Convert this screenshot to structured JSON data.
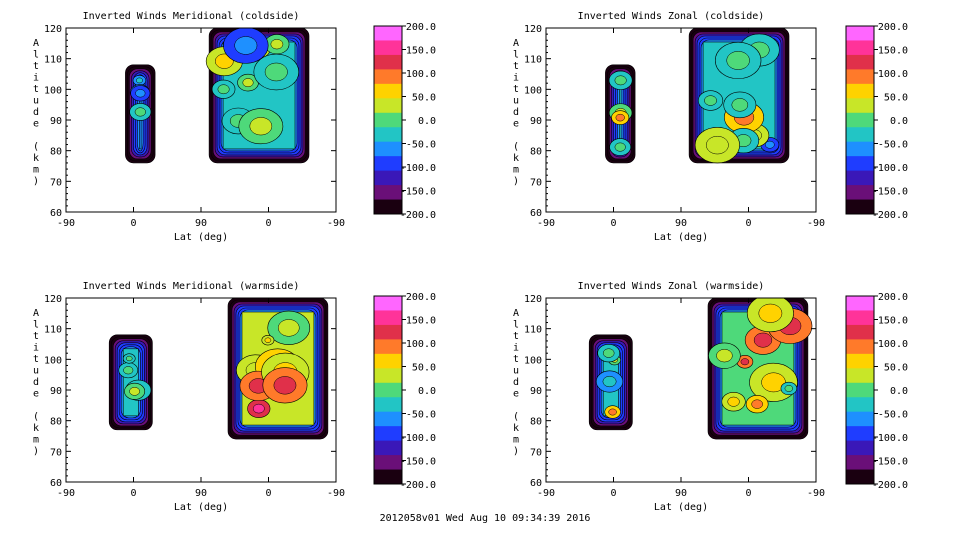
{
  "colorbar": {
    "tick_labels": [
      "200.0",
      "150.0",
      "100.0",
      "50.0",
      "0.0",
      "-50.0",
      "-100.0",
      "-150.0",
      "-200.0"
    ],
    "colors": [
      "#ff66ff",
      "#ff3399",
      "#e0304a",
      "#ff7a2a",
      "#ffd200",
      "#c8e628",
      "#4ed97a",
      "#22c5c5",
      "#1e90ff",
      "#1f3dff",
      "#3a18b8",
      "#6a0f78",
      "#1a0010"
    ]
  },
  "footer": "2012058v01 Wed Aug 10 09:34:39 2016",
  "chart_data": [
    {
      "type": "heatmap",
      "title": "Inverted Winds Meridional (coldside)",
      "xlabel": "Lat (deg)",
      "ylabel": "Altitude (km)",
      "x_ticks": [
        "-90",
        "0",
        "90",
        "0",
        "-90"
      ],
      "y_ticks": [
        "60",
        "70",
        "80",
        "90",
        "100",
        "110",
        "120"
      ],
      "ylim": [
        60,
        120
      ],
      "zlim": [
        -200,
        200
      ],
      "regions": [
        {
          "x_range": [
            "-15",
            "15"
          ],
          "alt_range": [
            76,
            108
          ],
          "typical_value": -60
        },
        {
          "x_range": [
            "90 (descending)",
            "-50"
          ],
          "alt_range": [
            76,
            120
          ],
          "typical_value": -40
        }
      ]
    },
    {
      "type": "heatmap",
      "title": "Inverted Winds Zonal (coldside)",
      "xlabel": "Lat (deg)",
      "ylabel": "Altitude (km)",
      "x_ticks": [
        "-90",
        "0",
        "90",
        "0",
        "-90"
      ],
      "y_ticks": [
        "60",
        "70",
        "80",
        "90",
        "100",
        "110",
        "120"
      ],
      "ylim": [
        60,
        120
      ],
      "zlim": [
        -200,
        200
      ],
      "regions": [
        {
          "x_range": [
            "-15",
            "15"
          ],
          "alt_range": [
            76,
            108
          ],
          "typical_value": -30
        },
        {
          "x_range": [
            "90 (descending)",
            "-50"
          ],
          "alt_range": [
            76,
            120
          ],
          "typical_value": -40
        }
      ]
    },
    {
      "type": "heatmap",
      "title": "Inverted Winds Meridional (warmside)",
      "xlabel": "Lat (deg)",
      "ylabel": "Altitude (km)",
      "x_ticks": [
        "-90",
        "0",
        "90",
        "0",
        "-90"
      ],
      "y_ticks": [
        "60",
        "70",
        "80",
        "90",
        "100",
        "110",
        "120"
      ],
      "ylim": [
        60,
        120
      ],
      "zlim": [
        -200,
        200
      ],
      "regions": [
        {
          "x_range": [
            "-15",
            "15"
          ],
          "alt_range": [
            77,
            108
          ],
          "typical_value": -30
        },
        {
          "x_range": [
            "65 (descending)",
            "-70"
          ],
          "alt_range": [
            74,
            120
          ],
          "typical_value": 40
        }
      ]
    },
    {
      "type": "heatmap",
      "title": "Inverted Winds Zonal (warmside)",
      "xlabel": "Lat (deg)",
      "ylabel": "Altitude (km)",
      "x_ticks": [
        "-90",
        "0",
        "90",
        "0",
        "-90"
      ],
      "y_ticks": [
        "60",
        "70",
        "80",
        "90",
        "100",
        "110",
        "120"
      ],
      "ylim": [
        60,
        120
      ],
      "zlim": [
        -200,
        200
      ],
      "regions": [
        {
          "x_range": [
            "-15",
            "15"
          ],
          "alt_range": [
            77,
            108
          ],
          "typical_value": -20
        },
        {
          "x_range": [
            "65 (descending)",
            "-70"
          ],
          "alt_range": [
            74,
            120
          ],
          "typical_value": 10
        }
      ]
    }
  ]
}
